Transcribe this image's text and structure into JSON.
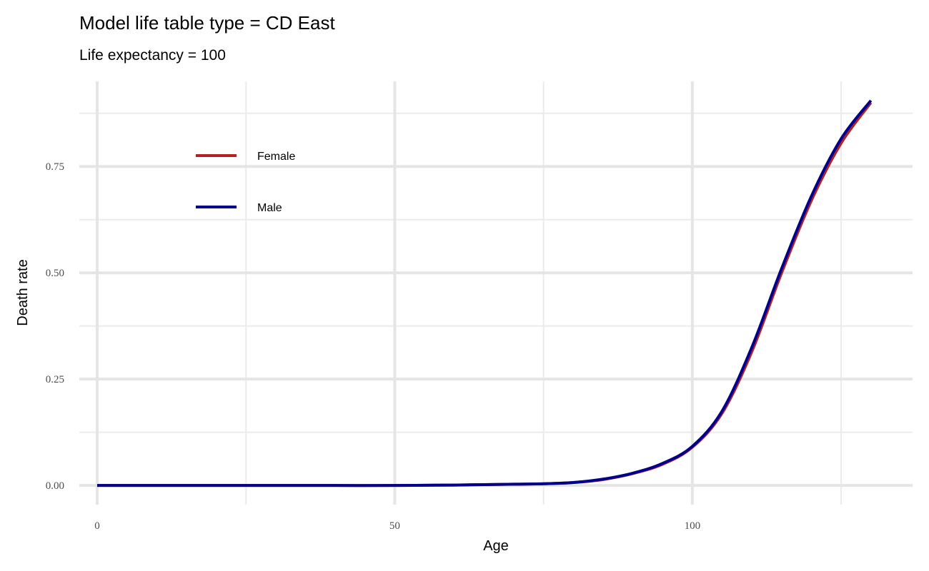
{
  "chart_data": {
    "type": "line",
    "title": "Model life table type = CD East",
    "subtitle": "Life expectancy = 100",
    "xlabel": "Age",
    "ylabel": "Death rate",
    "xlim": [
      -3,
      137
    ],
    "ylim": [
      -0.045,
      0.95
    ],
    "x_ticks": [
      0,
      50,
      100
    ],
    "x_tick_labels": [
      "0",
      "50",
      "100"
    ],
    "x_minor_ticks": [
      25,
      75,
      125
    ],
    "y_ticks": [
      0,
      0.25,
      0.5,
      0.75
    ],
    "y_tick_labels": [
      "0.00",
      "0.25",
      "0.50",
      "0.75"
    ],
    "y_minor_ticks": [
      0.125,
      0.375,
      0.625,
      0.875
    ],
    "grid": true,
    "legend_position": "top-left",
    "series": [
      {
        "name": "Female",
        "color": "#b22222",
        "x": [
          0,
          10,
          20,
          30,
          40,
          50,
          55,
          60,
          65,
          70,
          75,
          80,
          85,
          90,
          95,
          100,
          105,
          110,
          115,
          120,
          125,
          130
        ],
        "y": [
          0.0,
          0.0,
          0.0,
          0.0,
          0.0,
          0.0,
          0.0005,
          0.001,
          0.002,
          0.003,
          0.004,
          0.007,
          0.014,
          0.028,
          0.05,
          0.09,
          0.17,
          0.315,
          0.5,
          0.67,
          0.805,
          0.9
        ]
      },
      {
        "name": "Male",
        "color": "#00008b",
        "x": [
          0,
          10,
          20,
          30,
          40,
          50,
          55,
          60,
          65,
          70,
          75,
          80,
          85,
          90,
          95,
          100,
          105,
          110,
          115,
          120,
          125,
          130
        ],
        "y": [
          0.0,
          0.0,
          0.0,
          0.0,
          0.0,
          0.0,
          0.0005,
          0.001,
          0.002,
          0.003,
          0.004,
          0.007,
          0.015,
          0.029,
          0.052,
          0.092,
          0.175,
          0.325,
          0.51,
          0.68,
          0.815,
          0.905
        ]
      }
    ]
  }
}
